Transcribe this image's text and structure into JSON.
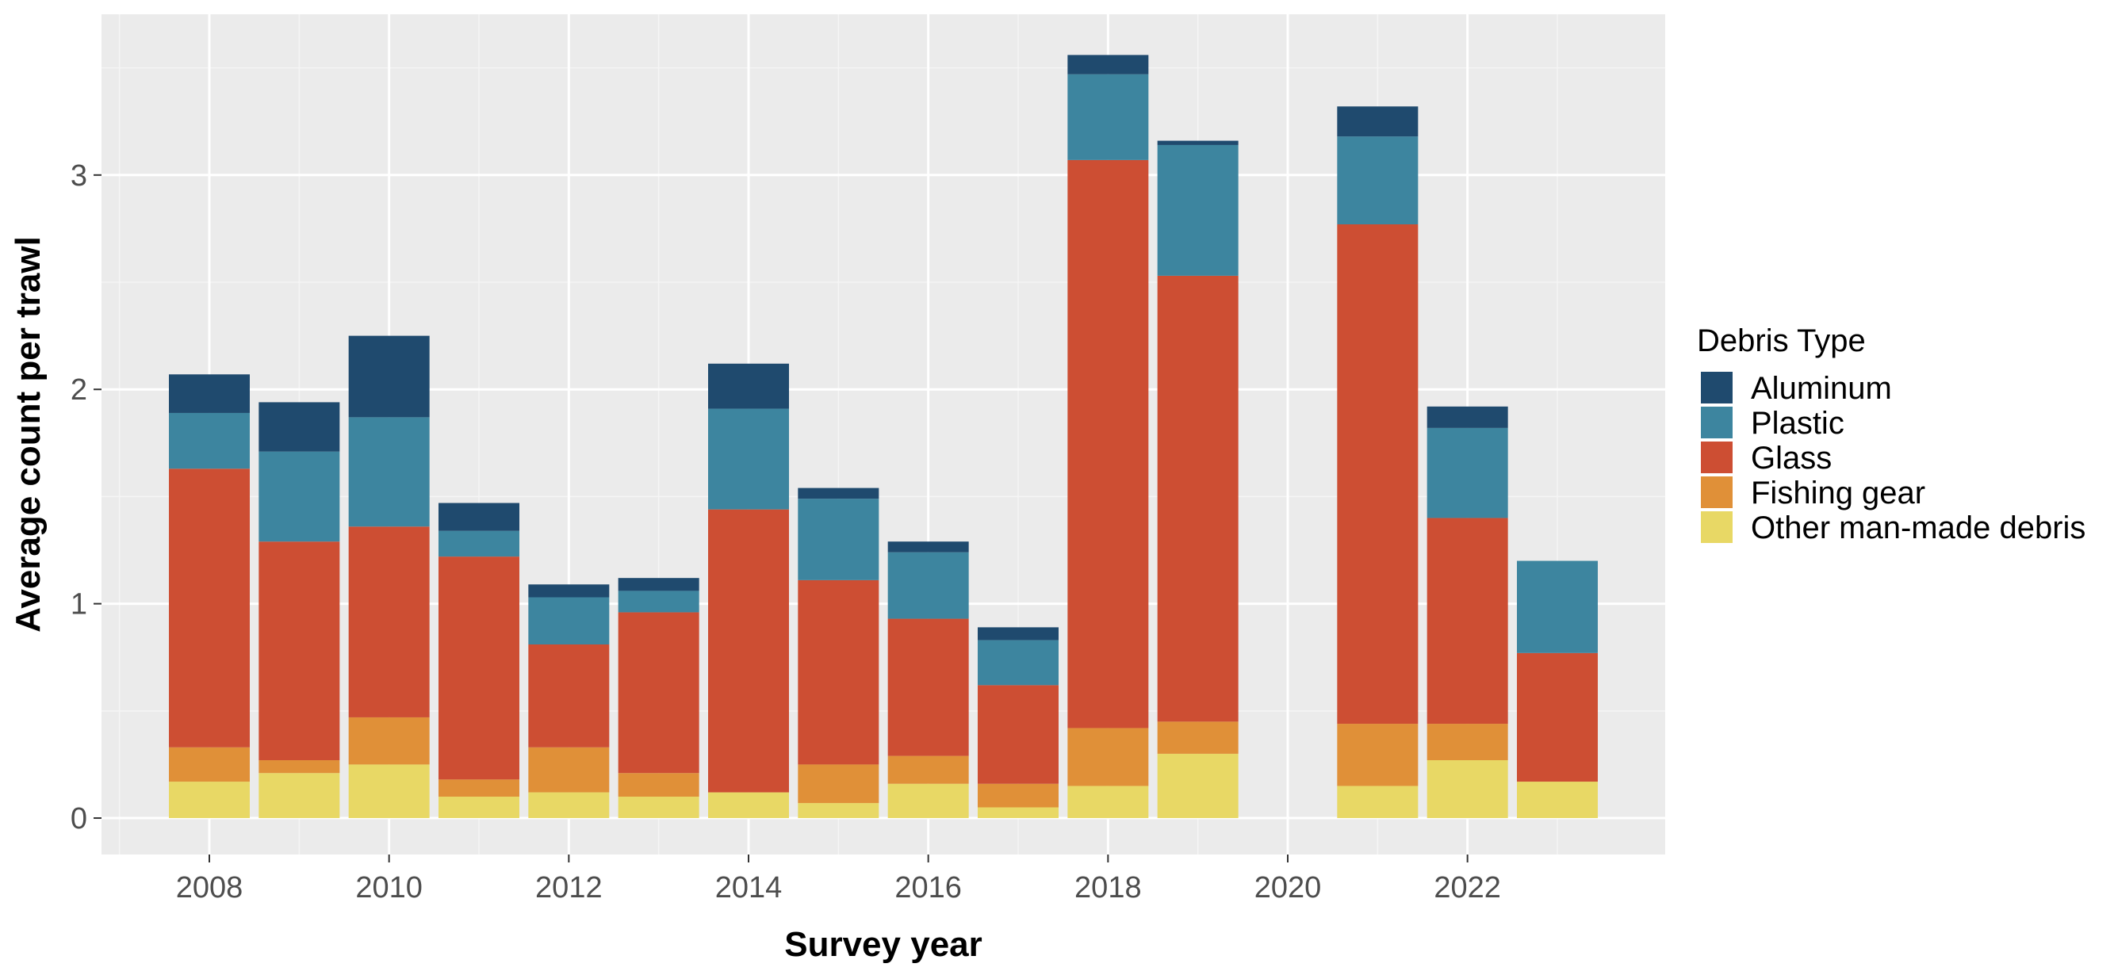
{
  "chart_data": {
    "type": "bar",
    "stacked": true,
    "xlabel": "Survey year",
    "ylabel": "Average count per trawl",
    "xlim": [
      2006.8,
      2024.2
    ],
    "ylim": [
      -0.17,
      3.75
    ],
    "x_ticks": [
      2008,
      2010,
      2012,
      2014,
      2016,
      2018,
      2020,
      2022
    ],
    "y_ticks": [
      0,
      1,
      2,
      3
    ],
    "grid": true,
    "legend_title": "Debris Type",
    "legend_position": "right",
    "x": [
      2008,
      2009,
      2010,
      2011,
      2012,
      2013,
      2014,
      2015,
      2016,
      2017,
      2018,
      2019,
      2021,
      2022,
      2023
    ],
    "series": [
      {
        "name": "Other man-made debris",
        "color": "#E8D865",
        "values": [
          0.17,
          0.21,
          0.25,
          0.1,
          0.12,
          0.1,
          0.12,
          0.07,
          0.16,
          0.05,
          0.15,
          0.3,
          0.15,
          0.27,
          0.17
        ]
      },
      {
        "name": "Fishing gear",
        "color": "#E09038",
        "values": [
          0.16,
          0.06,
          0.22,
          0.08,
          0.21,
          0.11,
          0.0,
          0.18,
          0.13,
          0.11,
          0.27,
          0.15,
          0.29,
          0.17,
          0.0
        ]
      },
      {
        "name": "Glass",
        "color": "#CD4E33",
        "values": [
          1.3,
          1.02,
          0.89,
          1.04,
          0.48,
          0.75,
          1.32,
          0.86,
          0.64,
          0.46,
          2.65,
          2.08,
          2.33,
          0.96,
          0.6
        ]
      },
      {
        "name": "Plastic",
        "color": "#3D859F",
        "values": [
          0.26,
          0.42,
          0.51,
          0.12,
          0.22,
          0.1,
          0.47,
          0.38,
          0.31,
          0.21,
          0.4,
          0.61,
          0.41,
          0.42,
          0.43
        ]
      },
      {
        "name": "Aluminum",
        "color": "#1F4A6E",
        "values": [
          0.18,
          0.23,
          0.38,
          0.13,
          0.06,
          0.06,
          0.21,
          0.05,
          0.05,
          0.06,
          0.09,
          0.02,
          0.14,
          0.1,
          0.0
        ]
      }
    ],
    "legend_order": [
      "Aluminum",
      "Plastic",
      "Glass",
      "Fishing gear",
      "Other man-made debris"
    ]
  },
  "colors": {
    "panel_background": "#EBEBEB",
    "grid_major": "#FFFFFF",
    "grid_minor": "#F5F5F5"
  }
}
